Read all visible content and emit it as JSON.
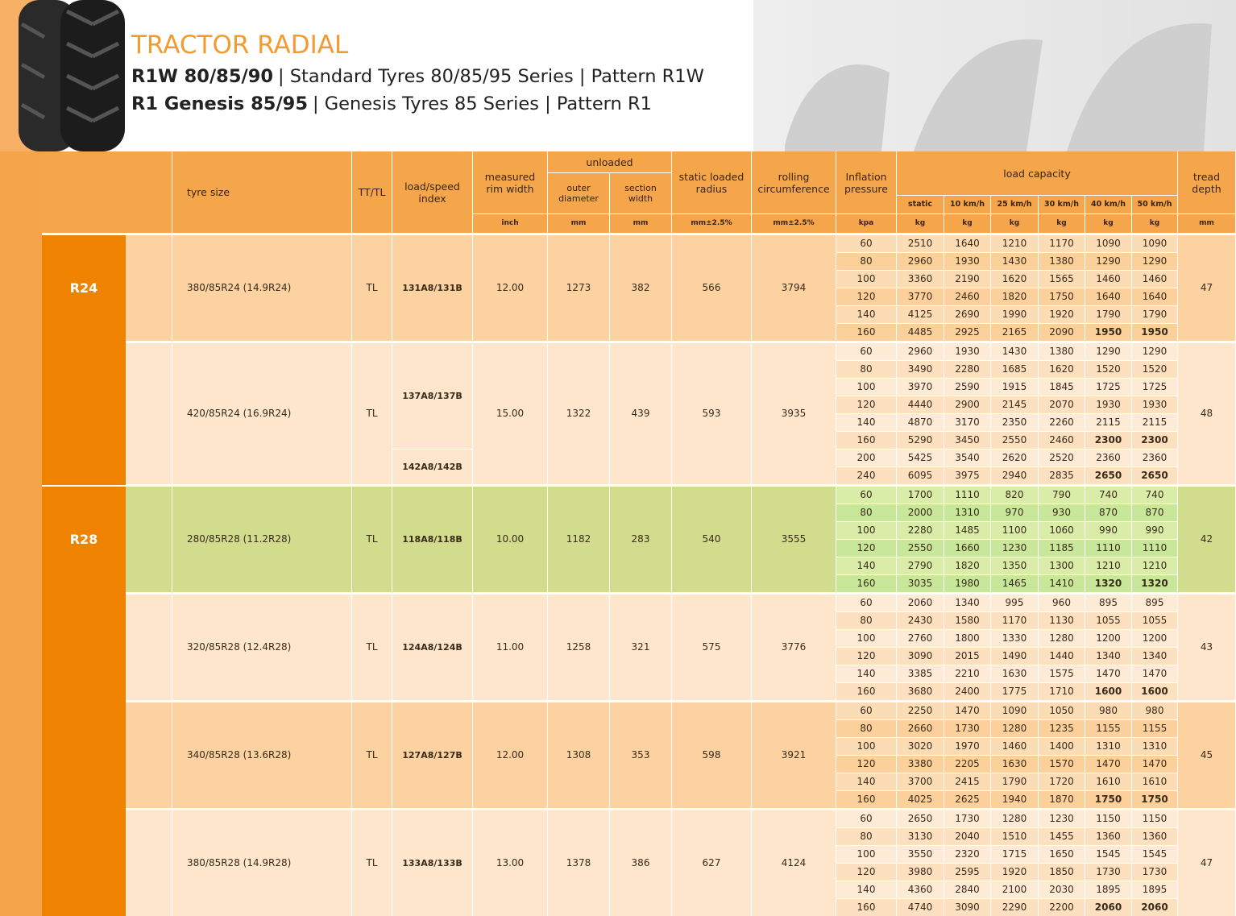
{
  "header": {
    "title": "TRACTOR RADIAL",
    "lines": [
      {
        "bold": "R1W 80/85/90",
        "text": "| Standard Tyres 80/85/95 Series | Pattern R1W"
      },
      {
        "bold": "R1 Genesis 85/95",
        "text": "| Genesis Tyres 85 Series | Pattern R1"
      }
    ]
  },
  "table": {
    "headers": {
      "tyre_size": "tyre size",
      "tt_tl": "TT/TL",
      "load_index": "load/speed index",
      "rim": "measured rim width",
      "unloaded": "unloaded",
      "outer": "outer diameter",
      "section": "section width",
      "radius": "static loaded radius",
      "circ": "rolling circumference",
      "pressure": "Inflation pressure",
      "load": "load capacity",
      "speeds": [
        "static",
        "10 km/h",
        "25 km/h",
        "30 km/h",
        "40 km/h",
        "50 km/h"
      ],
      "tread": "tread depth"
    },
    "units": {
      "rim": "inch",
      "outer": "mm",
      "section": "mm",
      "radius": "mm±2.5%",
      "circ": "mm±2.5%",
      "pressure": "kpa",
      "load": [
        "kg",
        "kg",
        "kg",
        "kg",
        "kg",
        "kg"
      ],
      "tread": "mm"
    },
    "groups": [
      {
        "label": "R24",
        "tyres": [
          {
            "size": "380/85R24 (14.9R24)",
            "tt_tl": "TL",
            "load_index": [
              "131A8/131B"
            ],
            "rim": "12.00",
            "outer": 1273,
            "section": 382,
            "radius": 566,
            "circ": 3794,
            "tread": 47,
            "bold_rows": [
              5
            ],
            "rows": [
              [
                60,
                2510,
                1640,
                1210,
                1170,
                1090,
                1090
              ],
              [
                80,
                2960,
                1930,
                1430,
                1380,
                1290,
                1290
              ],
              [
                100,
                3360,
                2190,
                1620,
                1565,
                1460,
                1460
              ],
              [
                120,
                3770,
                2460,
                1820,
                1750,
                1640,
                1640
              ],
              [
                140,
                4125,
                2690,
                1990,
                1920,
                1790,
                1790
              ],
              [
                160,
                4485,
                2925,
                2165,
                2090,
                1950,
                1950
              ]
            ]
          },
          {
            "size": "420/85R24 (16.9R24)",
            "tt_tl": "TL",
            "load_index": [
              "137A8/137B",
              "142A8/142B"
            ],
            "rim": "15.00",
            "outer": 1322,
            "section": 439,
            "radius": 593,
            "circ": 3935,
            "tread": 48,
            "bold_rows": [
              5,
              7
            ],
            "rows": [
              [
                60,
                2960,
                1930,
                1430,
                1380,
                1290,
                1290
              ],
              [
                80,
                3490,
                2280,
                1685,
                1620,
                1520,
                1520
              ],
              [
                100,
                3970,
                2590,
                1915,
                1845,
                1725,
                1725
              ],
              [
                120,
                4440,
                2900,
                2145,
                2070,
                1930,
                1930
              ],
              [
                140,
                4870,
                3170,
                2350,
                2260,
                2115,
                2115
              ],
              [
                160,
                5290,
                3450,
                2550,
                2460,
                2300,
                2300
              ],
              [
                200,
                5425,
                3540,
                2620,
                2520,
                2360,
                2360
              ],
              [
                240,
                6095,
                3975,
                2940,
                2835,
                2650,
                2650
              ]
            ]
          }
        ]
      },
      {
        "label": "R28",
        "tyres": [
          {
            "size": "280/85R28 (11.2R28)",
            "tt_tl": "TL",
            "load_index": [
              "118A8/118B"
            ],
            "rim": "10.00",
            "outer": 1182,
            "section": 283,
            "radius": 540,
            "circ": 3555,
            "tread": 42,
            "bold_rows": [
              5
            ],
            "highlight": true,
            "rows": [
              [
                60,
                1700,
                1110,
                820,
                790,
                740,
                740
              ],
              [
                80,
                2000,
                1310,
                970,
                930,
                870,
                870
              ],
              [
                100,
                2280,
                1485,
                1100,
                1060,
                990,
                990
              ],
              [
                120,
                2550,
                1660,
                1230,
                1185,
                1110,
                1110
              ],
              [
                140,
                2790,
                1820,
                1350,
                1300,
                1210,
                1210
              ],
              [
                160,
                3035,
                1980,
                1465,
                1410,
                1320,
                1320
              ]
            ]
          },
          {
            "size": "320/85R28 (12.4R28)",
            "tt_tl": "TL",
            "load_index": [
              "124A8/124B"
            ],
            "rim": "11.00",
            "outer": 1258,
            "section": 321,
            "radius": 575,
            "circ": 3776,
            "tread": 43,
            "bold_rows": [
              5
            ],
            "rows": [
              [
                60,
                2060,
                1340,
                995,
                960,
                895,
                895
              ],
              [
                80,
                2430,
                1580,
                1170,
                1130,
                1055,
                1055
              ],
              [
                100,
                2760,
                1800,
                1330,
                1280,
                1200,
                1200
              ],
              [
                120,
                3090,
                2015,
                1490,
                1440,
                1340,
                1340
              ],
              [
                140,
                3385,
                2210,
                1630,
                1575,
                1470,
                1470
              ],
              [
                160,
                3680,
                2400,
                1775,
                1710,
                1600,
                1600
              ]
            ]
          },
          {
            "size": "340/85R28 (13.6R28)",
            "tt_tl": "TL",
            "load_index": [
              "127A8/127B"
            ],
            "rim": "12.00",
            "outer": 1308,
            "section": 353,
            "radius": 598,
            "circ": 3921,
            "tread": 45,
            "bold_rows": [
              5
            ],
            "rows": [
              [
                60,
                2250,
                1470,
                1090,
                1050,
                980,
                980
              ],
              [
                80,
                2660,
                1730,
                1280,
                1235,
                1155,
                1155
              ],
              [
                100,
                3020,
                1970,
                1460,
                1400,
                1310,
                1310
              ],
              [
                120,
                3380,
                2205,
                1630,
                1570,
                1470,
                1470
              ],
              [
                140,
                3700,
                2415,
                1790,
                1720,
                1610,
                1610
              ],
              [
                160,
                4025,
                2625,
                1940,
                1870,
                1750,
                1750
              ]
            ]
          },
          {
            "size": "380/85R28 (14.9R28)",
            "tt_tl": "TL",
            "load_index": [
              "133A8/133B"
            ],
            "rim": "13.00",
            "outer": 1378,
            "section": 386,
            "radius": 627,
            "circ": 4124,
            "tread": 47,
            "bold_rows": [
              5
            ],
            "rows": [
              [
                60,
                2650,
                1730,
                1280,
                1230,
                1150,
                1150
              ],
              [
                80,
                3130,
                2040,
                1510,
                1455,
                1360,
                1360
              ],
              [
                100,
                3550,
                2320,
                1715,
                1650,
                1545,
                1545
              ],
              [
                120,
                3980,
                2595,
                1920,
                1850,
                1730,
                1730
              ],
              [
                140,
                4360,
                2840,
                2100,
                2030,
                1895,
                1895
              ],
              [
                160,
                4740,
                3090,
                2290,
                2200,
                2060,
                2060
              ]
            ]
          }
        ]
      }
    ]
  }
}
